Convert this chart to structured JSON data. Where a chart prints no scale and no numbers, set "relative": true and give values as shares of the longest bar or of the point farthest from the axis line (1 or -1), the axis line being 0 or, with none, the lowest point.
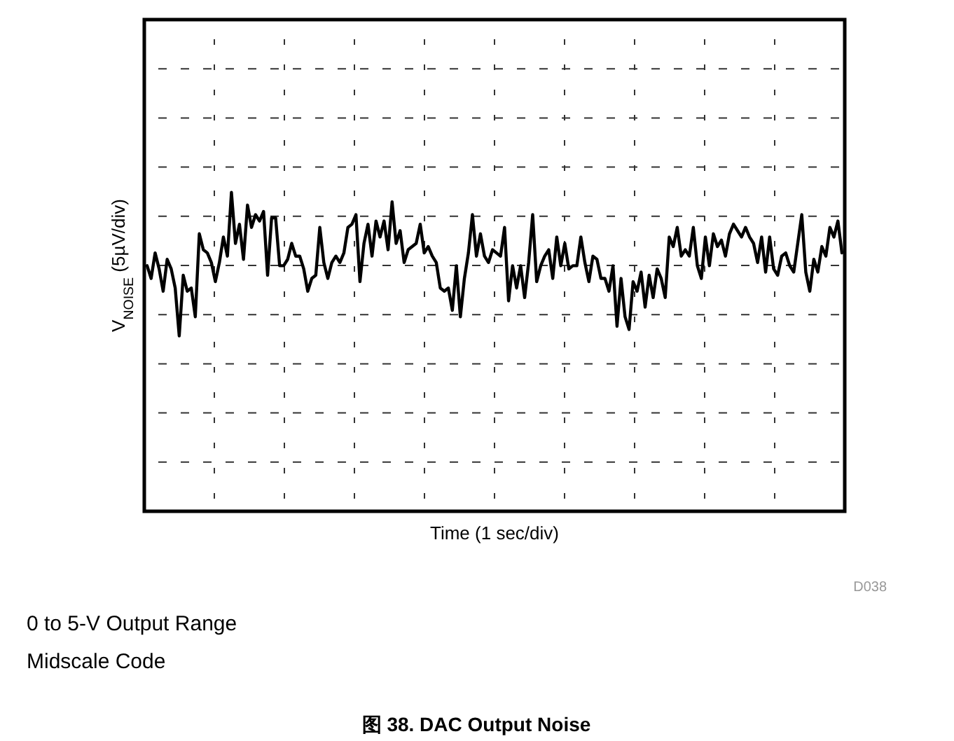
{
  "chart_data": {
    "type": "line",
    "relative": true,
    "title": "图 38. DAC Output Noise",
    "xlabel": "Time (1 sec/div)",
    "ylabel": "V$_{NOISE}$ (5µV/div)",
    "annotations": [
      "D038",
      "0 to 5-V Output Range",
      "Midscale Code"
    ],
    "categories": [
      null,
      null,
      null,
      null,
      null,
      null,
      null,
      null,
      null,
      null,
      null,
      null,
      null,
      null,
      null,
      null,
      null,
      null,
      null,
      null,
      null,
      null,
      null,
      null,
      null,
      null,
      null,
      null,
      null,
      null,
      null,
      null,
      null,
      null,
      null,
      null,
      null,
      null,
      null,
      null,
      null,
      null,
      null,
      null,
      null,
      null,
      null,
      null,
      null,
      null,
      null,
      null,
      null,
      null,
      null,
      null,
      null,
      null,
      null,
      null,
      null,
      null,
      null,
      null,
      null,
      null,
      null,
      null,
      null,
      null,
      null,
      null,
      null,
      null,
      null,
      null,
      null,
      null,
      null,
      null,
      null,
      null,
      null,
      null,
      null,
      null,
      null,
      null,
      null,
      null,
      null,
      null,
      null,
      null,
      null,
      null,
      null,
      null,
      null,
      null,
      null,
      null,
      null,
      null,
      null,
      null,
      null,
      null,
      null,
      null,
      null,
      null,
      null,
      null,
      null,
      null,
      null,
      null,
      null,
      null,
      null,
      null,
      null,
      null,
      null,
      null,
      null,
      null,
      null,
      null,
      null,
      null,
      null,
      null,
      null,
      null,
      null,
      null,
      null,
      null,
      null,
      null,
      null,
      null,
      null,
      null,
      null,
      null,
      null,
      null,
      null,
      null,
      null,
      null,
      null,
      null,
      null,
      null,
      null,
      null,
      null,
      null,
      null,
      null,
      null,
      null,
      null,
      null,
      null,
      null,
      null,
      null,
      null,
      null
    ],
    "grid": true,
    "series": [
      {
        "color": "#000000",
        "values": [
          0.77,
          0.73,
          0.81,
          0.76,
          0.69,
          0.79,
          0.76,
          0.7,
          0.55,
          0.74,
          0.69,
          0.7,
          0.61,
          0.87,
          0.82,
          0.81,
          0.78,
          0.72,
          0.78,
          0.86,
          0.8,
          1.0,
          0.84,
          0.9,
          0.79,
          0.96,
          0.89,
          0.93,
          0.91,
          0.94,
          0.74,
          0.92,
          0.92,
          0.77,
          0.77,
          0.79,
          0.84,
          0.8,
          0.8,
          0.76,
          0.69,
          0.73,
          0.74,
          0.89,
          0.78,
          0.73,
          0.78,
          0.8,
          0.78,
          0.81,
          0.89,
          0.9,
          0.93,
          0.72,
          0.84,
          0.9,
          0.8,
          0.91,
          0.86,
          0.91,
          0.82,
          0.97,
          0.84,
          0.88,
          0.78,
          0.82,
          0.83,
          0.84,
          0.9,
          0.81,
          0.83,
          0.8,
          0.78,
          0.7,
          0.69,
          0.7,
          0.63,
          0.77,
          0.61,
          0.73,
          0.81,
          0.93,
          0.8,
          0.87,
          0.8,
          0.78,
          0.82,
          0.81,
          0.8,
          0.89,
          0.66,
          0.77,
          0.7,
          0.77,
          0.67,
          0.78,
          0.93,
          0.72,
          0.77,
          0.8,
          0.82,
          0.73,
          0.86,
          0.77,
          0.84,
          0.76,
          0.77,
          0.77,
          0.86,
          0.78,
          0.72,
          0.8,
          0.79,
          0.73,
          0.73,
          0.69,
          0.77,
          0.58,
          0.73,
          0.61,
          0.57,
          0.72,
          0.69,
          0.75,
          0.64,
          0.74,
          0.67,
          0.76,
          0.73,
          0.67,
          0.86,
          0.83,
          0.89,
          0.8,
          0.82,
          0.8,
          0.89,
          0.77,
          0.73,
          0.86,
          0.77,
          0.87,
          0.83,
          0.85,
          0.8,
          0.87,
          0.9,
          0.88,
          0.86,
          0.89,
          0.86,
          0.84,
          0.78,
          0.86,
          0.75,
          0.86,
          0.76,
          0.74,
          0.8,
          0.81,
          0.77,
          0.75,
          0.84,
          0.93,
          0.75,
          0.69,
          0.79,
          0.75,
          0.83,
          0.8,
          0.89,
          0.86,
          0.91,
          0.81
        ]
      }
    ]
  }
}
